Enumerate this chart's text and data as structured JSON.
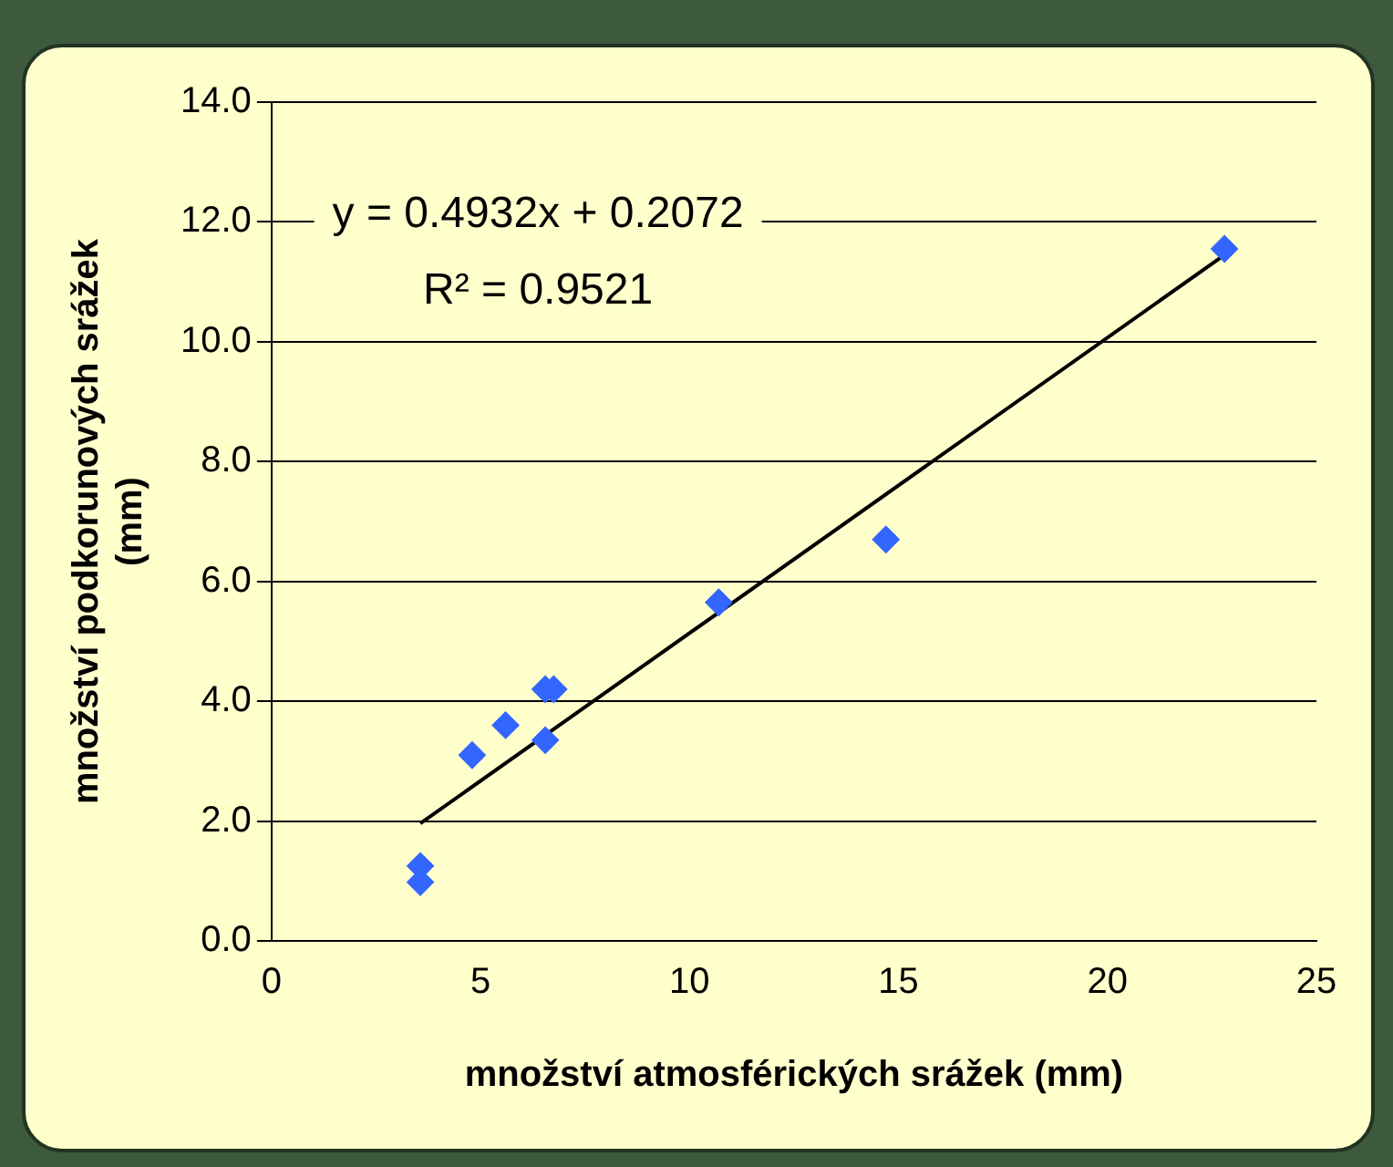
{
  "chart_data": {
    "type": "scatter",
    "xlabel": "množství atmosférických srážek (mm)",
    "ylabel": "množství podkorunových srážek (mm)",
    "annotations": [
      "y = 0.4932x + 0.2072",
      "R² = 0.9521"
    ],
    "series": [
      {
        "type": "scatter",
        "color": "#3366ff",
        "x": [
          3.56,
          3.56,
          4.8,
          5.6,
          6.55,
          6.75,
          6.55,
          10.7,
          14.7,
          22.8
        ],
        "values": [
          1.25,
          0.98,
          3.1,
          3.6,
          4.2,
          4.2,
          3.35,
          5.65,
          6.7,
          11.55
        ]
      },
      {
        "type": "line",
        "color": "#000000",
        "marker": "none",
        "line_style": "solid",
        "x": [
          3.56,
          22.8
        ],
        "values": [
          1.96,
          11.45
        ]
      }
    ],
    "marker": "diamond",
    "grid": "y",
    "legend": false,
    "xlim": [
      0,
      25
    ],
    "xticks": [
      0,
      5,
      10,
      15,
      20,
      25
    ],
    "ylim": [
      0,
      14
    ],
    "yticks": [
      {
        "value": 0,
        "label": "0.0"
      },
      {
        "value": 2,
        "label": "2.0"
      },
      {
        "value": 4,
        "label": "4.0"
      },
      {
        "value": 6,
        "label": "6.0"
      },
      {
        "value": 8,
        "label": "8.0"
      },
      {
        "value": 10,
        "label": "10.0"
      },
      {
        "value": 12,
        "label": "12.0"
      },
      {
        "value": 14,
        "label": "14.0"
      }
    ]
  }
}
